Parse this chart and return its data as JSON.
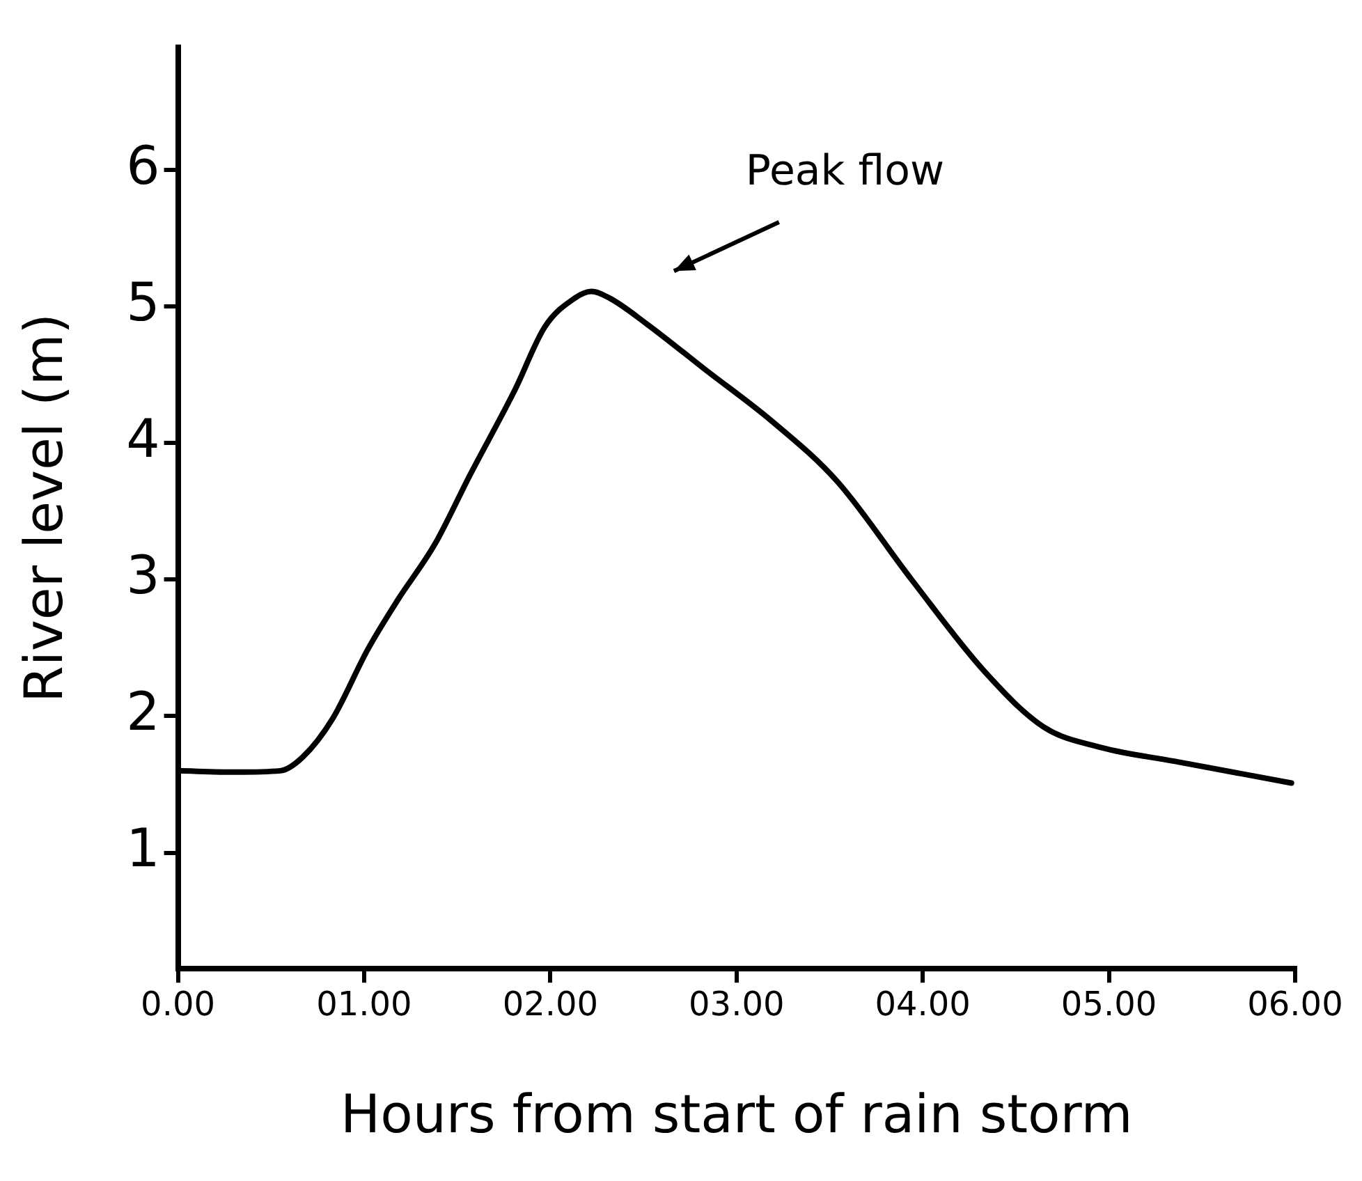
{
  "chart_data": {
    "type": "line",
    "xlabel": "Hours from start of rain storm",
    "ylabel": "River level (m)",
    "x": [
      0,
      0.31,
      0.55,
      0.67,
      0.83,
      1.02,
      1.18,
      1.38,
      1.57,
      1.81,
      1.97,
      2.13,
      2.22,
      2.32,
      2.52,
      2.83,
      3.19,
      3.54,
      3.94,
      4.33,
      4.65,
      4.96,
      5.35,
      5.98
    ],
    "series": [
      {
        "color": "#000000",
        "values": [
          1.6,
          1.59,
          1.6,
          1.7,
          1.98,
          2.49,
          2.85,
          3.26,
          3.77,
          4.39,
          4.85,
          5.06,
          5.11,
          5.06,
          4.87,
          4.54,
          4.16,
          3.72,
          3.0,
          2.33,
          1.92,
          1.77,
          1.67,
          1.51
        ]
      }
    ],
    "xlim": [
      0,
      6
    ],
    "xticks": [
      {
        "value": 0,
        "label": "0.00"
      },
      {
        "value": 1,
        "label": "01.00"
      },
      {
        "value": 2,
        "label": "02.00"
      },
      {
        "value": 3,
        "label": "03.00"
      },
      {
        "value": 4,
        "label": "04.00"
      },
      {
        "value": 5,
        "label": "05.00"
      },
      {
        "value": 6,
        "label": "06.00"
      }
    ],
    "ylim": [
      0.15,
      6.9
    ],
    "yticks": [
      1,
      2,
      3,
      4,
      5,
      6
    ],
    "annotations": [
      "Peak flow"
    ],
    "grid": false,
    "legend": false,
    "marker": "none",
    "line_style": "solid"
  }
}
